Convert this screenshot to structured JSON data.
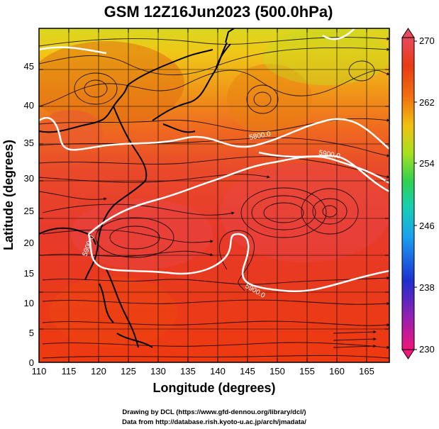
{
  "title": "GSM 12Z16Jun2023 (500.0hPa)",
  "x_axis": {
    "label": "Longitude (degrees)",
    "ticks": [
      "110",
      "115",
      "120",
      "125",
      "130",
      "135",
      "140",
      "145",
      "150",
      "155",
      "160",
      "165"
    ]
  },
  "y_axis": {
    "label": "Latitude  (degrees)",
    "ticks": [
      "0",
      "5",
      "10",
      "15",
      "20",
      "25",
      "30",
      "35",
      "40",
      "45"
    ]
  },
  "colorbar": {
    "ticks": [
      "270",
      "262",
      "254",
      "246",
      "238",
      "230"
    ],
    "colors": [
      "#f0167a",
      "#9a1fb0",
      "#1e2fd0",
      "#1aa0f0",
      "#18d0b0",
      "#30d050",
      "#a8e020",
      "#f0c010",
      "#f07010",
      "#e83c14",
      "#e84a5e"
    ]
  },
  "contours": [
    {
      "label": "5800.0"
    },
    {
      "label": "5900.0"
    },
    {
      "label": "5900.0",
      "position": "left"
    },
    {
      "label": "5900.0",
      "position": "bottom"
    }
  ],
  "footer": {
    "line1": "Drawing by DCL (https://www.gfd-dennou.org/library/dcl/)",
    "line2": "Data from http://database.rish.kyoto-u.ac.jp/arch/jmadata/"
  }
}
